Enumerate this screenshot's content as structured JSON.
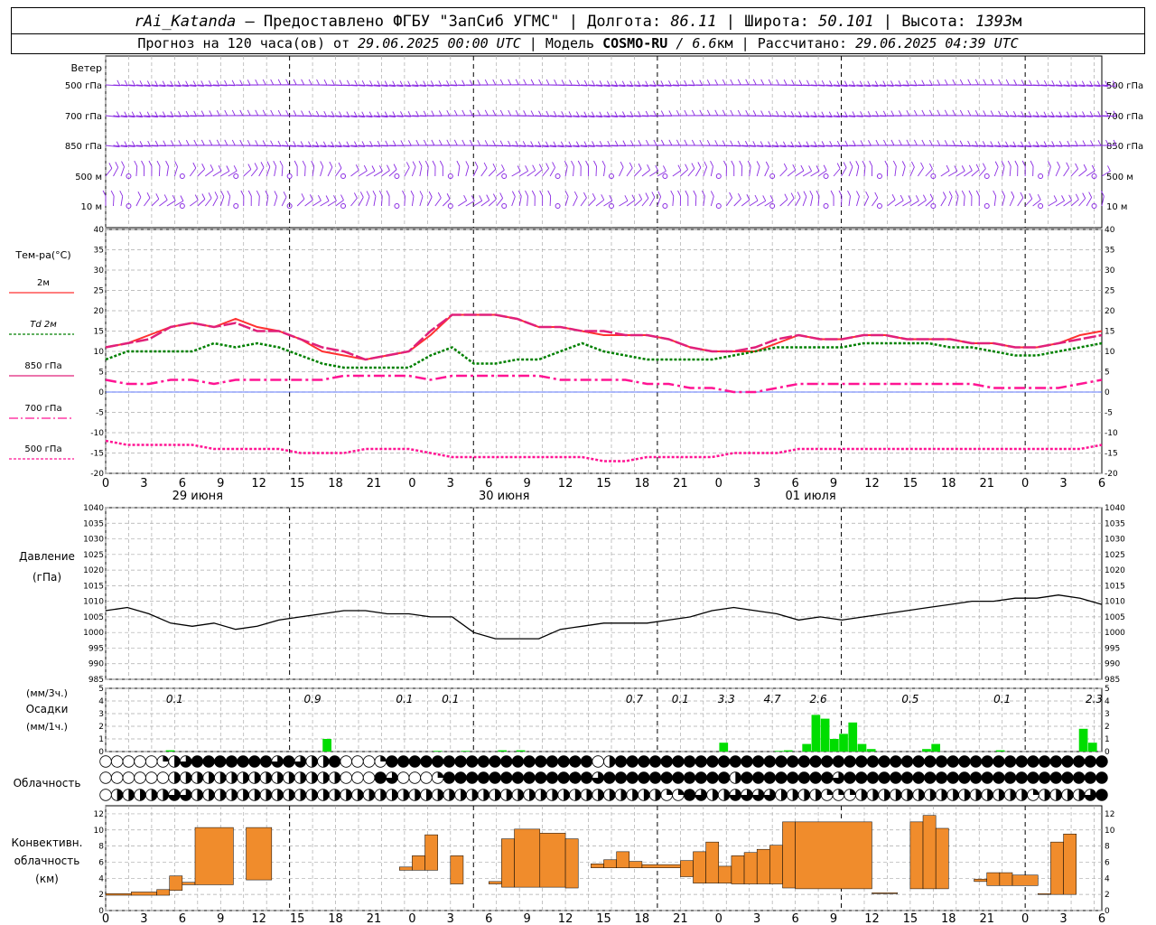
{
  "header": {
    "station": "rAi_Katanda",
    "provider": "— Предоставлено ФГБУ \"ЗапСиб УГМС\"",
    "lon_label": "Долгота:",
    "lon_value": "86.11",
    "lat_label": "Широта:",
    "lat_value": "50.101",
    "alt_label": "Высота:",
    "alt_value": "1393",
    "alt_unit": "м",
    "forecast_text": "Прогноз на 120 часа(ов) от",
    "forecast_start": "29.06.2025 00:00 UTC",
    "model_label": "Модель",
    "model_name": "COSMO-RU",
    "model_res": "/ 6.6",
    "model_res_unit": "км",
    "calc_label": "Рассчитано:",
    "calc_time": "29.06.2025 04:39 UTC"
  },
  "x_axis": {
    "hour_ticks": [
      "0",
      "3",
      "6",
      "9",
      "12",
      "15",
      "18",
      "21",
      "0",
      "3",
      "6",
      "9",
      "12",
      "15",
      "18",
      "21",
      "0",
      "3",
      "6",
      "9",
      "12",
      "15",
      "18",
      "21",
      "0",
      "3",
      "6"
    ],
    "day_labels": [
      "29 июня",
      "30 июня",
      "01 июля"
    ]
  },
  "colors": {
    "t2m": "#ff3030",
    "td2m": "#008000",
    "t850": "#e0207a",
    "t700": "#ff1493",
    "t500": "#ff1493",
    "wind": "#8a2be2",
    "precip": "#00dd00",
    "conv": "#f08c2c",
    "pressure": "#000000"
  },
  "chart_data": [
    {
      "type": "wind-barbs",
      "label": "Ветер",
      "levels": [
        "500 гПа",
        "700 гПа",
        "850 гПа",
        "500 м",
        "10 м"
      ],
      "calm_symbol_note": "circles indicate calm"
    },
    {
      "type": "line",
      "ylabel": "Тем-ра(°C)",
      "ylim": [
        -20,
        40
      ],
      "yticks": [
        "40",
        "35",
        "30",
        "25",
        "20",
        "15",
        "10",
        "5",
        "0",
        "-5",
        "-10",
        "-15",
        "-20"
      ],
      "x_hours_step": 3,
      "series": [
        {
          "name": "2м",
          "values": [
            11,
            12,
            14,
            16,
            17,
            16,
            18,
            16,
            15,
            13,
            10,
            9,
            8,
            9,
            10,
            14,
            19,
            19,
            19,
            18,
            16,
            16,
            15,
            14,
            14,
            14,
            13,
            11,
            10,
            10,
            10,
            12,
            14,
            13,
            13,
            14,
            14,
            13,
            13,
            13,
            12,
            12,
            11,
            11,
            12,
            14,
            15
          ]
        },
        {
          "name": "Td 2м",
          "values": [
            8,
            10,
            10,
            10,
            10,
            12,
            11,
            12,
            11,
            9,
            7,
            6,
            6,
            6,
            6,
            9,
            11,
            7,
            7,
            8,
            8,
            10,
            12,
            10,
            9,
            8,
            8,
            8,
            8,
            9,
            10,
            11,
            11,
            11,
            11,
            12,
            12,
            12,
            12,
            11,
            11,
            10,
            9,
            9,
            10,
            11,
            12
          ]
        },
        {
          "name": "850 гПа",
          "values": [
            11,
            12,
            13,
            16,
            17,
            16,
            17,
            15,
            15,
            13,
            11,
            10,
            8,
            9,
            10,
            15,
            19,
            19,
            19,
            18,
            16,
            16,
            15,
            15,
            14,
            14,
            13,
            11,
            10,
            10,
            11,
            13,
            14,
            13,
            13,
            14,
            14,
            13,
            13,
            13,
            12,
            12,
            11,
            11,
            12,
            13,
            14
          ]
        },
        {
          "name": "700 гПа",
          "values": [
            3,
            2,
            2,
            3,
            3,
            2,
            3,
            3,
            3,
            3,
            3,
            4,
            4,
            4,
            4,
            3,
            4,
            4,
            4,
            4,
            4,
            3,
            3,
            3,
            3,
            2,
            2,
            1,
            1,
            0,
            0,
            1,
            2,
            2,
            2,
            2,
            2,
            2,
            2,
            2,
            2,
            1,
            1,
            1,
            1,
            2,
            3
          ]
        },
        {
          "name": "500 гПа",
          "values": [
            -12,
            -13,
            -13,
            -13,
            -13,
            -14,
            -14,
            -14,
            -14,
            -15,
            -15,
            -15,
            -14,
            -14,
            -14,
            -15,
            -16,
            -16,
            -16,
            -16,
            -16,
            -16,
            -16,
            -17,
            -17,
            -16,
            -16,
            -16,
            -16,
            -15,
            -15,
            -15,
            -14,
            -14,
            -14,
            -14,
            -14,
            -14,
            -14,
            -14,
            -14,
            -14,
            -14,
            -14,
            -14,
            -14,
            -13
          ]
        }
      ]
    },
    {
      "type": "line",
      "ylabel": "Давление",
      "ylabel2": "(гПа)",
      "ylim": [
        985,
        1040
      ],
      "yticks": [
        "1040",
        "1035",
        "1030",
        "1025",
        "1020",
        "1015",
        "1010",
        "1005",
        "1000",
        "995",
        "990",
        "985"
      ],
      "series": [
        {
          "name": "pressure",
          "values": [
            1007,
            1008,
            1006,
            1003,
            1002,
            1003,
            1001,
            1002,
            1004,
            1005,
            1006,
            1007,
            1007,
            1006,
            1006,
            1005,
            1005,
            1000,
            998,
            998,
            998,
            1001,
            1002,
            1003,
            1003,
            1003,
            1004,
            1005,
            1007,
            1008,
            1007,
            1006,
            1004,
            1005,
            1004,
            1005,
            1006,
            1007,
            1008,
            1009,
            1010,
            1010,
            1011,
            1011,
            1012,
            1011,
            1009
          ]
        }
      ]
    },
    {
      "type": "bar",
      "ylabel": "(мм/3ч.)",
      "ylabel_mid": "Осадки",
      "ylabel2": "(мм/1ч.)",
      "ylim": [
        0,
        5
      ],
      "yticks": [
        "5",
        "4",
        "3",
        "2",
        "1",
        "0"
      ],
      "totals": [
        {
          "hour": 9,
          "label": "0.1"
        },
        {
          "hour": 27,
          "label": "0.9"
        },
        {
          "hour": 39,
          "label": "0.1"
        },
        {
          "hour": 45,
          "label": "0.1"
        },
        {
          "hour": 69,
          "label": "0.7"
        },
        {
          "hour": 75,
          "label": "0.1"
        },
        {
          "hour": 81,
          "label": "3.3"
        },
        {
          "hour": 87,
          "label": "4.7"
        },
        {
          "hour": 93,
          "label": "2.6"
        },
        {
          "hour": 105,
          "label": "0.5"
        },
        {
          "hour": 117,
          "label": "0.1"
        },
        {
          "hour": 129,
          "label": "2.3"
        }
      ],
      "bars": [
        {
          "hour": 7,
          "value": 0.1
        },
        {
          "hour": 24,
          "value": 1.0
        },
        {
          "hour": 36,
          "value": 0.05
        },
        {
          "hour": 39,
          "value": 0.05
        },
        {
          "hour": 43,
          "value": 0.1
        },
        {
          "hour": 45,
          "value": 0.1
        },
        {
          "hour": 67,
          "value": 0.7
        },
        {
          "hour": 73,
          "value": 0.05
        },
        {
          "hour": 74,
          "value": 0.1
        },
        {
          "hour": 76,
          "value": 0.6
        },
        {
          "hour": 77,
          "value": 2.9
        },
        {
          "hour": 78,
          "value": 2.6
        },
        {
          "hour": 79,
          "value": 1.0
        },
        {
          "hour": 80,
          "value": 1.4
        },
        {
          "hour": 81,
          "value": 2.3
        },
        {
          "hour": 82,
          "value": 0.6
        },
        {
          "hour": 83,
          "value": 0.2
        },
        {
          "hour": 89,
          "value": 0.2
        },
        {
          "hour": 90,
          "value": 0.6
        },
        {
          "hour": 97,
          "value": 0.1
        },
        {
          "hour": 106,
          "value": 1.8
        },
        {
          "hour": 107,
          "value": 0.7
        }
      ]
    },
    {
      "type": "table",
      "label": "Облачность",
      "rows": 3,
      "cover_levels_0_8": [
        [
          0,
          0,
          0,
          0,
          0,
          2,
          4,
          6,
          8,
          8,
          8,
          8,
          8,
          8,
          8,
          6,
          8,
          6,
          4,
          4,
          8,
          0,
          0,
          0,
          2,
          8,
          8,
          8,
          8,
          8,
          8,
          8,
          8,
          8,
          8,
          8,
          8,
          8,
          8,
          8,
          8,
          8,
          8,
          0,
          4,
          8,
          8,
          8,
          8,
          8,
          8,
          8,
          8,
          8,
          8,
          8,
          8,
          8,
          8,
          8,
          8,
          8,
          8,
          8,
          8,
          8,
          8,
          8,
          8,
          8,
          8,
          8,
          8,
          8,
          8,
          8,
          8,
          8,
          8,
          8,
          8,
          8,
          8,
          8,
          8,
          8,
          8,
          8
        ],
        [
          0,
          0,
          0,
          0,
          0,
          0,
          4,
          4,
          4,
          4,
          4,
          4,
          4,
          4,
          4,
          4,
          4,
          4,
          4,
          4,
          4,
          0,
          0,
          0,
          8,
          6,
          0,
          0,
          0,
          2,
          8,
          8,
          8,
          8,
          8,
          8,
          8,
          8,
          8,
          8,
          8,
          8,
          8,
          6,
          8,
          8,
          8,
          8,
          8,
          8,
          8,
          8,
          8,
          8,
          8,
          4,
          8,
          8,
          8,
          8,
          8,
          8,
          8,
          8,
          6,
          8,
          8,
          8,
          8,
          8,
          8,
          8,
          8,
          8,
          8,
          8,
          8,
          8,
          8,
          8,
          8,
          8,
          8,
          8,
          8,
          8,
          8,
          8
        ],
        [
          0,
          4,
          4,
          4,
          4,
          4,
          6,
          6,
          4,
          4,
          4,
          4,
          4,
          4,
          4,
          4,
          4,
          4,
          4,
          4,
          4,
          4,
          4,
          4,
          4,
          4,
          4,
          4,
          4,
          4,
          4,
          4,
          4,
          4,
          4,
          4,
          4,
          4,
          4,
          4,
          4,
          4,
          4,
          4,
          4,
          4,
          4,
          4,
          4,
          2,
          2,
          8,
          6,
          4,
          4,
          6,
          6,
          6,
          6,
          4,
          4,
          4,
          4,
          2,
          2,
          2,
          4,
          4,
          4,
          4,
          4,
          4,
          4,
          4,
          4,
          4,
          4,
          4,
          4,
          4,
          4,
          2,
          4,
          4,
          4,
          4,
          6,
          8
        ]
      ]
    },
    {
      "type": "bar",
      "ylabel": "Конвективн.",
      "ylabel2": "облачность",
      "ylabel3": "(км)",
      "ylim": [
        0,
        13
      ],
      "yticks": [
        "12",
        "10",
        "8",
        "6",
        "4",
        "2",
        "0"
      ],
      "segments": [
        {
          "h0": 0,
          "h1": 2,
          "bottom": 1.9,
          "top": 2.1
        },
        {
          "h0": 2,
          "h1": 4,
          "bottom": 1.9,
          "top": 2.3
        },
        {
          "h0": 4,
          "h1": 5,
          "bottom": 1.9,
          "top": 2.6
        },
        {
          "h0": 5,
          "h1": 6,
          "bottom": 2.5,
          "top": 4.3
        },
        {
          "h0": 6,
          "h1": 7,
          "bottom": 3.2,
          "top": 3.5
        },
        {
          "h0": 7,
          "h1": 10,
          "bottom": 3.2,
          "top": 10.3
        },
        {
          "h0": 11,
          "h1": 13,
          "bottom": 3.8,
          "top": 10.3
        },
        {
          "h0": 23,
          "h1": 24,
          "bottom": 5.0,
          "top": 5.4
        },
        {
          "h0": 24,
          "h1": 25,
          "bottom": 5.0,
          "top": 6.8
        },
        {
          "h0": 25,
          "h1": 26,
          "bottom": 5.0,
          "top": 9.4
        },
        {
          "h0": 27,
          "h1": 28,
          "bottom": 3.3,
          "top": 6.8
        },
        {
          "h0": 30,
          "h1": 31,
          "bottom": 3.3,
          "top": 3.6
        },
        {
          "h0": 31,
          "h1": 32,
          "bottom": 2.9,
          "top": 8.9
        },
        {
          "h0": 32,
          "h1": 34,
          "bottom": 2.9,
          "top": 10.1
        },
        {
          "h0": 34,
          "h1": 36,
          "bottom": 2.9,
          "top": 9.6
        },
        {
          "h0": 36,
          "h1": 37,
          "bottom": 2.8,
          "top": 8.9
        },
        {
          "h0": 38,
          "h1": 39,
          "bottom": 5.3,
          "top": 5.8
        },
        {
          "h0": 39,
          "h1": 40,
          "bottom": 5.3,
          "top": 6.3
        },
        {
          "h0": 40,
          "h1": 41,
          "bottom": 5.3,
          "top": 7.3
        },
        {
          "h0": 41,
          "h1": 42,
          "bottom": 5.3,
          "top": 6.1
        },
        {
          "h0": 42,
          "h1": 45,
          "bottom": 5.3,
          "top": 5.7
        },
        {
          "h0": 45,
          "h1": 46,
          "bottom": 4.2,
          "top": 6.2
        },
        {
          "h0": 46,
          "h1": 47,
          "bottom": 3.4,
          "top": 7.3
        },
        {
          "h0": 47,
          "h1": 48,
          "bottom": 3.4,
          "top": 8.5
        },
        {
          "h0": 48,
          "h1": 49,
          "bottom": 3.4,
          "top": 5.5
        },
        {
          "h0": 49,
          "h1": 50,
          "bottom": 3.3,
          "top": 6.8
        },
        {
          "h0": 50,
          "h1": 51,
          "bottom": 3.3,
          "top": 7.2
        },
        {
          "h0": 51,
          "h1": 52,
          "bottom": 3.3,
          "top": 7.6
        },
        {
          "h0": 52,
          "h1": 53,
          "bottom": 3.3,
          "top": 8.1
        },
        {
          "h0": 53,
          "h1": 54,
          "bottom": 2.8,
          "top": 11.0
        },
        {
          "h0": 54,
          "h1": 60,
          "bottom": 2.7,
          "top": 11.0
        },
        {
          "h0": 60,
          "h1": 62,
          "bottom": 2.1,
          "top": 2.2
        },
        {
          "h0": 63,
          "h1": 64,
          "bottom": 2.7,
          "top": 11.0
        },
        {
          "h0": 64,
          "h1": 65,
          "bottom": 2.7,
          "top": 11.8
        },
        {
          "h0": 65,
          "h1": 66,
          "bottom": 2.7,
          "top": 10.2
        },
        {
          "h0": 68,
          "h1": 69,
          "bottom": 3.6,
          "top": 3.9
        },
        {
          "h0": 69,
          "h1": 70,
          "bottom": 3.1,
          "top": 4.7
        },
        {
          "h0": 70,
          "h1": 71,
          "bottom": 3.1,
          "top": 4.7
        },
        {
          "h0": 71,
          "h1": 73,
          "bottom": 3.1,
          "top": 4.4
        },
        {
          "h0": 73,
          "h1": 74,
          "bottom": 2.0,
          "top": 2.1
        },
        {
          "h0": 74,
          "h1": 75,
          "bottom": 2.0,
          "top": 8.5
        },
        {
          "h0": 75,
          "h1": 76,
          "bottom": 2.0,
          "top": 9.5
        }
      ]
    }
  ]
}
